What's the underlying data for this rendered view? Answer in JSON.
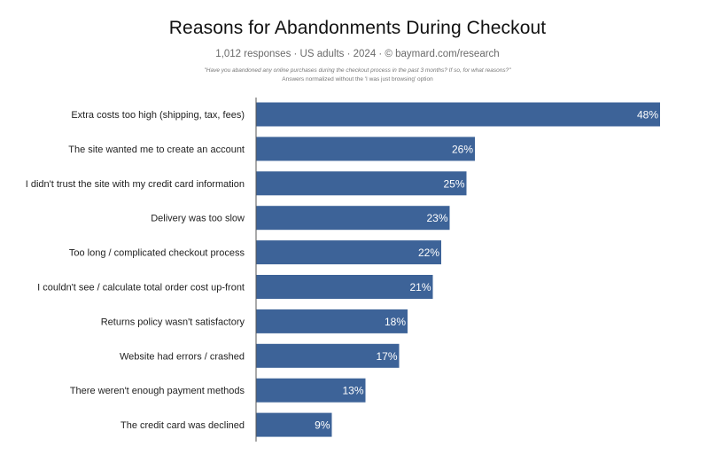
{
  "chart_data": {
    "type": "bar",
    "orientation": "horizontal",
    "title": "Reasons for Abandonments During Checkout",
    "subtitle": "1,012 responses  ·  US adults  ·  2024  ·  © baymard.com/research",
    "note_question": "\"Have you abandoned any online purchases during the checkout process in the past 3 months? If so, for what reasons?\"",
    "note_normalized": "Answers normalized without the 'I was just browsing' option",
    "categories": [
      "Extra costs too high (shipping, tax, fees)",
      "The site wanted me to create an account",
      "I didn't trust the site with my credit card information",
      "Delivery was too slow",
      "Too long / complicated checkout process",
      "I couldn't see / calculate total order cost up-front",
      "Returns policy wasn't satisfactory",
      "Website had errors / crashed",
      "There weren't enough payment methods",
      "The credit card was declined"
    ],
    "values": [
      48,
      26,
      25,
      23,
      22,
      21,
      18,
      17,
      13,
      9
    ],
    "value_labels": [
      "48%",
      "26%",
      "25%",
      "23%",
      "22%",
      "21%",
      "18%",
      "17%",
      "13%",
      "9%"
    ],
    "unit": "%",
    "xlim": [
      0,
      48
    ],
    "grid": false,
    "legend": "none",
    "bar_color": "#3d6398"
  }
}
